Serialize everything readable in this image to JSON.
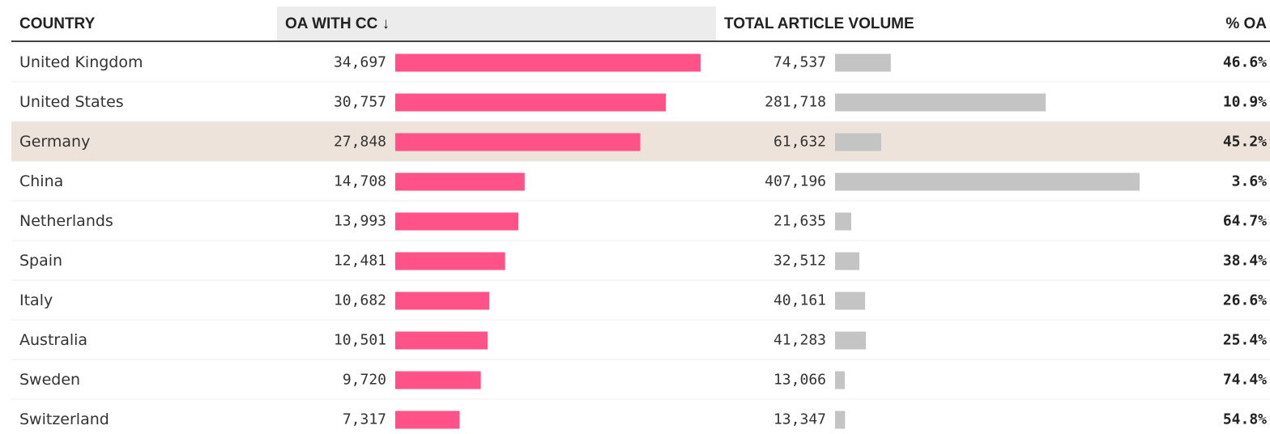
{
  "table": {
    "columns": [
      "COUNTRY",
      "OA WITH CC ↓",
      "TOTAL ARTICLE VOLUME",
      "% OA"
    ],
    "highlight_color": "#ede3da",
    "oa_color": "#ff5288",
    "volume_color": "#c4c4c4",
    "rows": [
      {
        "country": "United Kingdom",
        "oa_cc": {
          "value": 34697,
          "label": "34,697"
        },
        "volume": {
          "value": 74537,
          "label": "74,537"
        },
        "pct": {
          "value": 46.6,
          "label": "46.6%"
        }
      },
      {
        "country": "United States",
        "oa_cc": {
          "value": 30757,
          "label": "30,757"
        },
        "volume": {
          "value": 281718,
          "label": "281,718"
        },
        "pct": {
          "value": 10.9,
          "label": "10.9%"
        }
      },
      {
        "country": "Germany",
        "oa_cc": {
          "value": 27848,
          "label": "27,848"
        },
        "volume": {
          "value": 61632,
          "label": "61,632"
        },
        "pct": {
          "value": 45.2,
          "label": "45.2%"
        },
        "highlighted": true
      },
      {
        "country": "China",
        "oa_cc": {
          "value": 14708,
          "label": "14,708"
        },
        "volume": {
          "value": 407196,
          "label": "407,196"
        },
        "pct": {
          "value": 3.6,
          "label": "3.6%"
        }
      },
      {
        "country": "Netherlands",
        "oa_cc": {
          "value": 13993,
          "label": "13,993"
        },
        "volume": {
          "value": 21635,
          "label": "21,635"
        },
        "pct": {
          "value": 64.7,
          "label": "64.7%"
        }
      },
      {
        "country": "Spain",
        "oa_cc": {
          "value": 12481,
          "label": "12,481"
        },
        "volume": {
          "value": 32512,
          "label": "32,512"
        },
        "pct": {
          "value": 38.4,
          "label": "38.4%"
        }
      },
      {
        "country": "Italy",
        "oa_cc": {
          "value": 10682,
          "label": "10,682"
        },
        "volume": {
          "value": 40161,
          "label": "40,161"
        },
        "pct": {
          "value": 26.6,
          "label": "26.6%"
        }
      },
      {
        "country": "Australia",
        "oa_cc": {
          "value": 10501,
          "label": "10,501"
        },
        "volume": {
          "value": 41283,
          "label": "41,283"
        },
        "pct": {
          "value": 25.4,
          "label": "25.4%"
        }
      },
      {
        "country": "Sweden",
        "oa_cc": {
          "value": 9720,
          "label": "9,720"
        },
        "volume": {
          "value": 13066,
          "label": "13,066"
        },
        "pct": {
          "value": 74.4,
          "label": "74.4%"
        }
      },
      {
        "country": "Switzerland",
        "oa_cc": {
          "value": 7317,
          "label": "7,317"
        },
        "volume": {
          "value": 13347,
          "label": "13,347"
        },
        "pct": {
          "value": 54.8,
          "label": "54.8%"
        }
      }
    ]
  }
}
